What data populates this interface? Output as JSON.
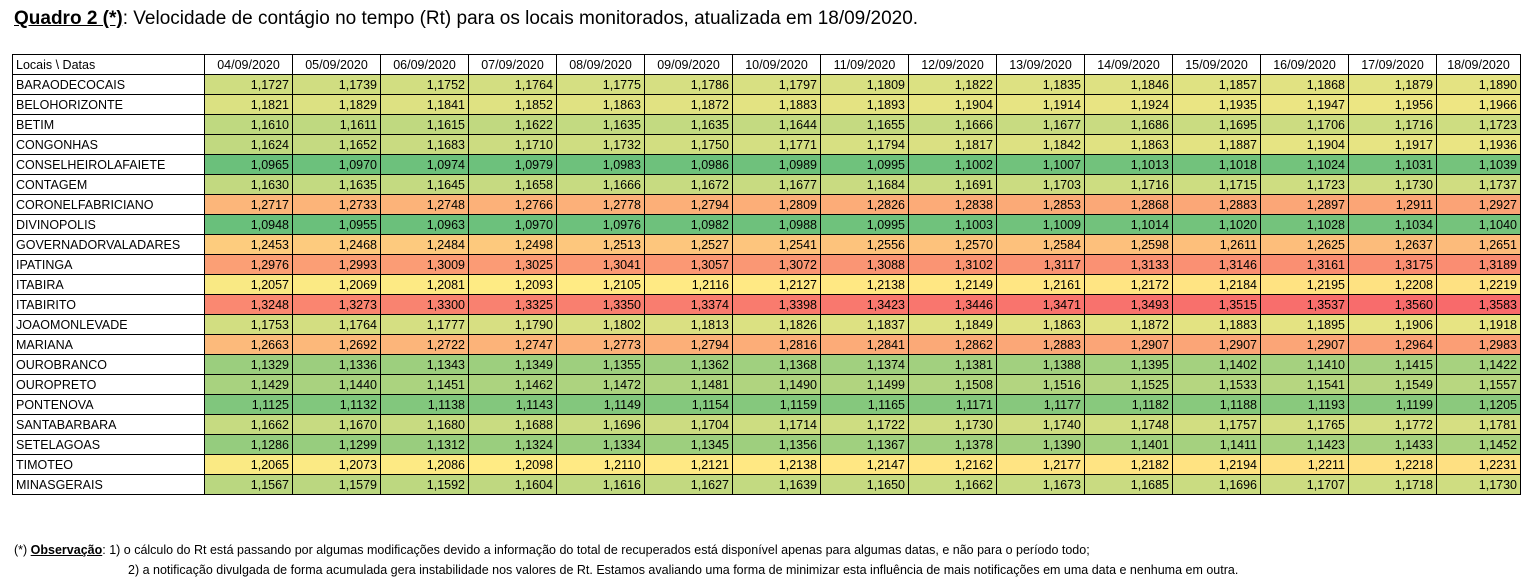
{
  "title": {
    "label": "Quadro 2 (*)",
    "text": ": Velocidade de contágio no tempo (Rt) para os locais monitorados,  atualizada em 18/09/2020."
  },
  "table": {
    "corner": "Locais   \\  Datas",
    "dates": [
      "04/09/2020",
      "05/09/2020",
      "06/09/2020",
      "07/09/2020",
      "08/09/2020",
      "09/09/2020",
      "10/09/2020",
      "11/09/2020",
      "12/09/2020",
      "13/09/2020",
      "14/09/2020",
      "15/09/2020",
      "16/09/2020",
      "17/09/2020",
      "18/09/2020"
    ],
    "rows": [
      {
        "name": "BARAODECOCAIS",
        "values": [
          "1,1727",
          "1,1739",
          "1,1752",
          "1,1764",
          "1,1775",
          "1,1786",
          "1,1797",
          "1,1809",
          "1,1822",
          "1,1835",
          "1,1846",
          "1,1857",
          "1,1868",
          "1,1879",
          "1,1890"
        ]
      },
      {
        "name": "BELOHORIZONTE",
        "values": [
          "1,1821",
          "1,1829",
          "1,1841",
          "1,1852",
          "1,1863",
          "1,1872",
          "1,1883",
          "1,1893",
          "1,1904",
          "1,1914",
          "1,1924",
          "1,1935",
          "1,1947",
          "1,1956",
          "1,1966"
        ]
      },
      {
        "name": "BETIM",
        "values": [
          "1,1610",
          "1,1611",
          "1,1615",
          "1,1622",
          "1,1635",
          "1,1635",
          "1,1644",
          "1,1655",
          "1,1666",
          "1,1677",
          "1,1686",
          "1,1695",
          "1,1706",
          "1,1716",
          "1,1723"
        ]
      },
      {
        "name": "CONGONHAS",
        "values": [
          "1,1624",
          "1,1652",
          "1,1683",
          "1,1710",
          "1,1732",
          "1,1750",
          "1,1771",
          "1,1794",
          "1,1817",
          "1,1842",
          "1,1863",
          "1,1887",
          "1,1904",
          "1,1917",
          "1,1936"
        ]
      },
      {
        "name": "CONSELHEIROLAFAIETE",
        "values": [
          "1,0965",
          "1,0970",
          "1,0974",
          "1,0979",
          "1,0983",
          "1,0986",
          "1,0989",
          "1,0995",
          "1,1002",
          "1,1007",
          "1,1013",
          "1,1018",
          "1,1024",
          "1,1031",
          "1,1039"
        ]
      },
      {
        "name": "CONTAGEM",
        "values": [
          "1,1630",
          "1,1635",
          "1,1645",
          "1,1658",
          "1,1666",
          "1,1672",
          "1,1677",
          "1,1684",
          "1,1691",
          "1,1703",
          "1,1716",
          "1,1715",
          "1,1723",
          "1,1730",
          "1,1737"
        ]
      },
      {
        "name": "CORONELFABRICIANO",
        "values": [
          "1,2717",
          "1,2733",
          "1,2748",
          "1,2766",
          "1,2778",
          "1,2794",
          "1,2809",
          "1,2826",
          "1,2838",
          "1,2853",
          "1,2868",
          "1,2883",
          "1,2897",
          "1,2911",
          "1,2927"
        ]
      },
      {
        "name": "DIVINOPOLIS",
        "values": [
          "1,0948",
          "1,0955",
          "1,0963",
          "1,0970",
          "1,0976",
          "1,0982",
          "1,0988",
          "1,0995",
          "1,1003",
          "1,1009",
          "1,1014",
          "1,1020",
          "1,1028",
          "1,1034",
          "1,1040"
        ]
      },
      {
        "name": "GOVERNADORVALADARES",
        "values": [
          "1,2453",
          "1,2468",
          "1,2484",
          "1,2498",
          "1,2513",
          "1,2527",
          "1,2541",
          "1,2556",
          "1,2570",
          "1,2584",
          "1,2598",
          "1,2611",
          "1,2625",
          "1,2637",
          "1,2651"
        ]
      },
      {
        "name": "IPATINGA",
        "values": [
          "1,2976",
          "1,2993",
          "1,3009",
          "1,3025",
          "1,3041",
          "1,3057",
          "1,3072",
          "1,3088",
          "1,3102",
          "1,3117",
          "1,3133",
          "1,3146",
          "1,3161",
          "1,3175",
          "1,3189"
        ]
      },
      {
        "name": "ITABIRA",
        "values": [
          "1,2057",
          "1,2069",
          "1,2081",
          "1,2093",
          "1,2105",
          "1,2116",
          "1,2127",
          "1,2138",
          "1,2149",
          "1,2161",
          "1,2172",
          "1,2184",
          "1,2195",
          "1,2208",
          "1,2219"
        ]
      },
      {
        "name": "ITABIRITO",
        "values": [
          "1,3248",
          "1,3273",
          "1,3300",
          "1,3325",
          "1,3350",
          "1,3374",
          "1,3398",
          "1,3423",
          "1,3446",
          "1,3471",
          "1,3493",
          "1,3515",
          "1,3537",
          "1,3560",
          "1,3583"
        ]
      },
      {
        "name": "JOAOMONLEVADE",
        "values": [
          "1,1753",
          "1,1764",
          "1,1777",
          "1,1790",
          "1,1802",
          "1,1813",
          "1,1826",
          "1,1837",
          "1,1849",
          "1,1863",
          "1,1872",
          "1,1883",
          "1,1895",
          "1,1906",
          "1,1918"
        ]
      },
      {
        "name": "MARIANA",
        "values": [
          "1,2663",
          "1,2692",
          "1,2722",
          "1,2747",
          "1,2773",
          "1,2794",
          "1,2816",
          "1,2841",
          "1,2862",
          "1,2883",
          "1,2907",
          "1,2907",
          "1,2907",
          "1,2964",
          "1,2983"
        ]
      },
      {
        "name": "OUROBRANCO",
        "values": [
          "1,1329",
          "1,1336",
          "1,1343",
          "1,1349",
          "1,1355",
          "1,1362",
          "1,1368",
          "1,1374",
          "1,1381",
          "1,1388",
          "1,1395",
          "1,1402",
          "1,1410",
          "1,1415",
          "1,1422"
        ]
      },
      {
        "name": "OUROPRETO",
        "values": [
          "1,1429",
          "1,1440",
          "1,1451",
          "1,1462",
          "1,1472",
          "1,1481",
          "1,1490",
          "1,1499",
          "1,1508",
          "1,1516",
          "1,1525",
          "1,1533",
          "1,1541",
          "1,1549",
          "1,1557"
        ]
      },
      {
        "name": "PONTENOVA",
        "values": [
          "1,1125",
          "1,1132",
          "1,1138",
          "1,1143",
          "1,1149",
          "1,1154",
          "1,1159",
          "1,1165",
          "1,1171",
          "1,1177",
          "1,1182",
          "1,1188",
          "1,1193",
          "1,1199",
          "1,1205"
        ]
      },
      {
        "name": "SANTABARBARA",
        "values": [
          "1,1662",
          "1,1670",
          "1,1680",
          "1,1688",
          "1,1696",
          "1,1704",
          "1,1714",
          "1,1722",
          "1,1730",
          "1,1740",
          "1,1748",
          "1,1757",
          "1,1765",
          "1,1772",
          "1,1781"
        ]
      },
      {
        "name": "SETELAGOAS",
        "values": [
          "1,1286",
          "1,1299",
          "1,1312",
          "1,1324",
          "1,1334",
          "1,1345",
          "1,1356",
          "1,1367",
          "1,1378",
          "1,1390",
          "1,1401",
          "1,1411",
          "1,1423",
          "1,1433",
          "1,1452"
        ]
      },
      {
        "name": "TIMOTEO",
        "values": [
          "1,2065",
          "1,2073",
          "1,2086",
          "1,2098",
          "1,2110",
          "1,2121",
          "1,2138",
          "1,2147",
          "1,2162",
          "1,2177",
          "1,2182",
          "1,2194",
          "1,2211",
          "1,2218",
          "1,2231"
        ]
      },
      {
        "name": "MINASGERAIS",
        "values": [
          "1,1567",
          "1,1579",
          "1,1592",
          "1,1604",
          "1,1616",
          "1,1627",
          "1,1639",
          "1,1650",
          "1,1662",
          "1,1673",
          "1,1685",
          "1,1696",
          "1,1707",
          "1,1718",
          "1,1730"
        ]
      }
    ]
  },
  "color_scale": {
    "min": 1.09,
    "mid": 1.21,
    "max": 1.36,
    "low_color": "#63be7b",
    "mid_color": "#ffeb84",
    "high_color": "#f8696b"
  },
  "notes": {
    "prefix": "(*) ",
    "label": "Observação",
    "line1": ": 1) o cálculo do Rt está passando por algumas modificações devido a informação do total de recuperados está disponível apenas para algumas datas, e não para o período todo;",
    "line2": "2) a notificação divulgada de forma acumulada gera instabilidade nos valores de Rt. Estamos avaliando uma forma de minimizar esta influência de mais notificações em uma data e nenhuma em outra."
  }
}
